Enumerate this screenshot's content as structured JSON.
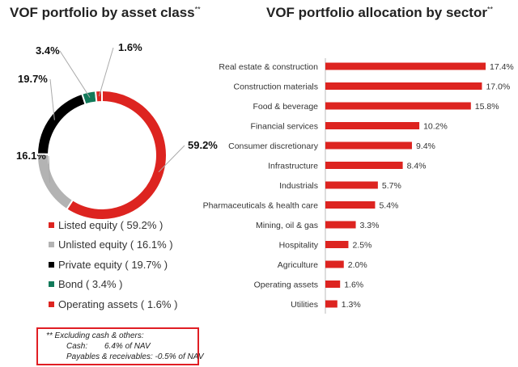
{
  "chart_data": [
    {
      "type": "pie",
      "title": "VOF portfolio by asset class",
      "title_mark": "**",
      "donut": true,
      "slices": [
        {
          "name": "Listed equity",
          "value": 59.2,
          "label": "59.2%",
          "legend": "Listed equity ( 59.2% )",
          "color": "#dd2420"
        },
        {
          "name": "Unlisted equity",
          "value": 16.1,
          "label": "16.1%",
          "legend": "Unlisted equity ( 16.1% )",
          "color": "#b3b3b3"
        },
        {
          "name": "Private equity",
          "value": 19.7,
          "label": "19.7%",
          "legend": "Private equity ( 19.7% )",
          "color": "#000000"
        },
        {
          "name": "Bond",
          "value": 3.4,
          "label": "3.4%",
          "legend": "Bond ( 3.4% )",
          "color": "#127a5a"
        },
        {
          "name": "Operating assets",
          "value": 1.6,
          "label": "1.6%",
          "legend": "Operating assets ( 1.6% )",
          "color": "#dd2420"
        }
      ],
      "legend_placement": "bottom"
    },
    {
      "type": "bar",
      "orientation": "horizontal",
      "title": "VOF portfolio allocation by sector",
      "title_mark": "**",
      "categories": [
        "Real estate & construction",
        "Construction materials",
        "Food & beverage",
        "Financial services",
        "Consumer discretionary",
        "Infrastructure",
        "Industrials",
        "Pharmaceuticals & health care",
        "Mining, oil & gas",
        "Hospitality",
        "Agriculture",
        "Operating assets",
        "Utilities"
      ],
      "values": [
        17.4,
        17.0,
        15.8,
        10.2,
        9.4,
        8.4,
        5.7,
        5.4,
        3.3,
        2.5,
        2.0,
        1.6,
        1.3
      ],
      "data_labels": [
        "17.4%",
        "17.0%",
        "15.8%",
        "10.2%",
        "9.4%",
        "8.4%",
        "5.7%",
        "5.4%",
        "3.3%",
        "2.5%",
        "2.0%",
        "1.6%",
        "1.3%"
      ],
      "color": "#dd2420",
      "xlim": [
        0,
        17.4
      ],
      "grid": false
    }
  ],
  "note": {
    "line1": "** Excluding cash & others:",
    "cash_label": "Cash:",
    "cash_value": "6.4% of NAV",
    "payables": "Payables & receivables: -0.5% of NAV"
  }
}
